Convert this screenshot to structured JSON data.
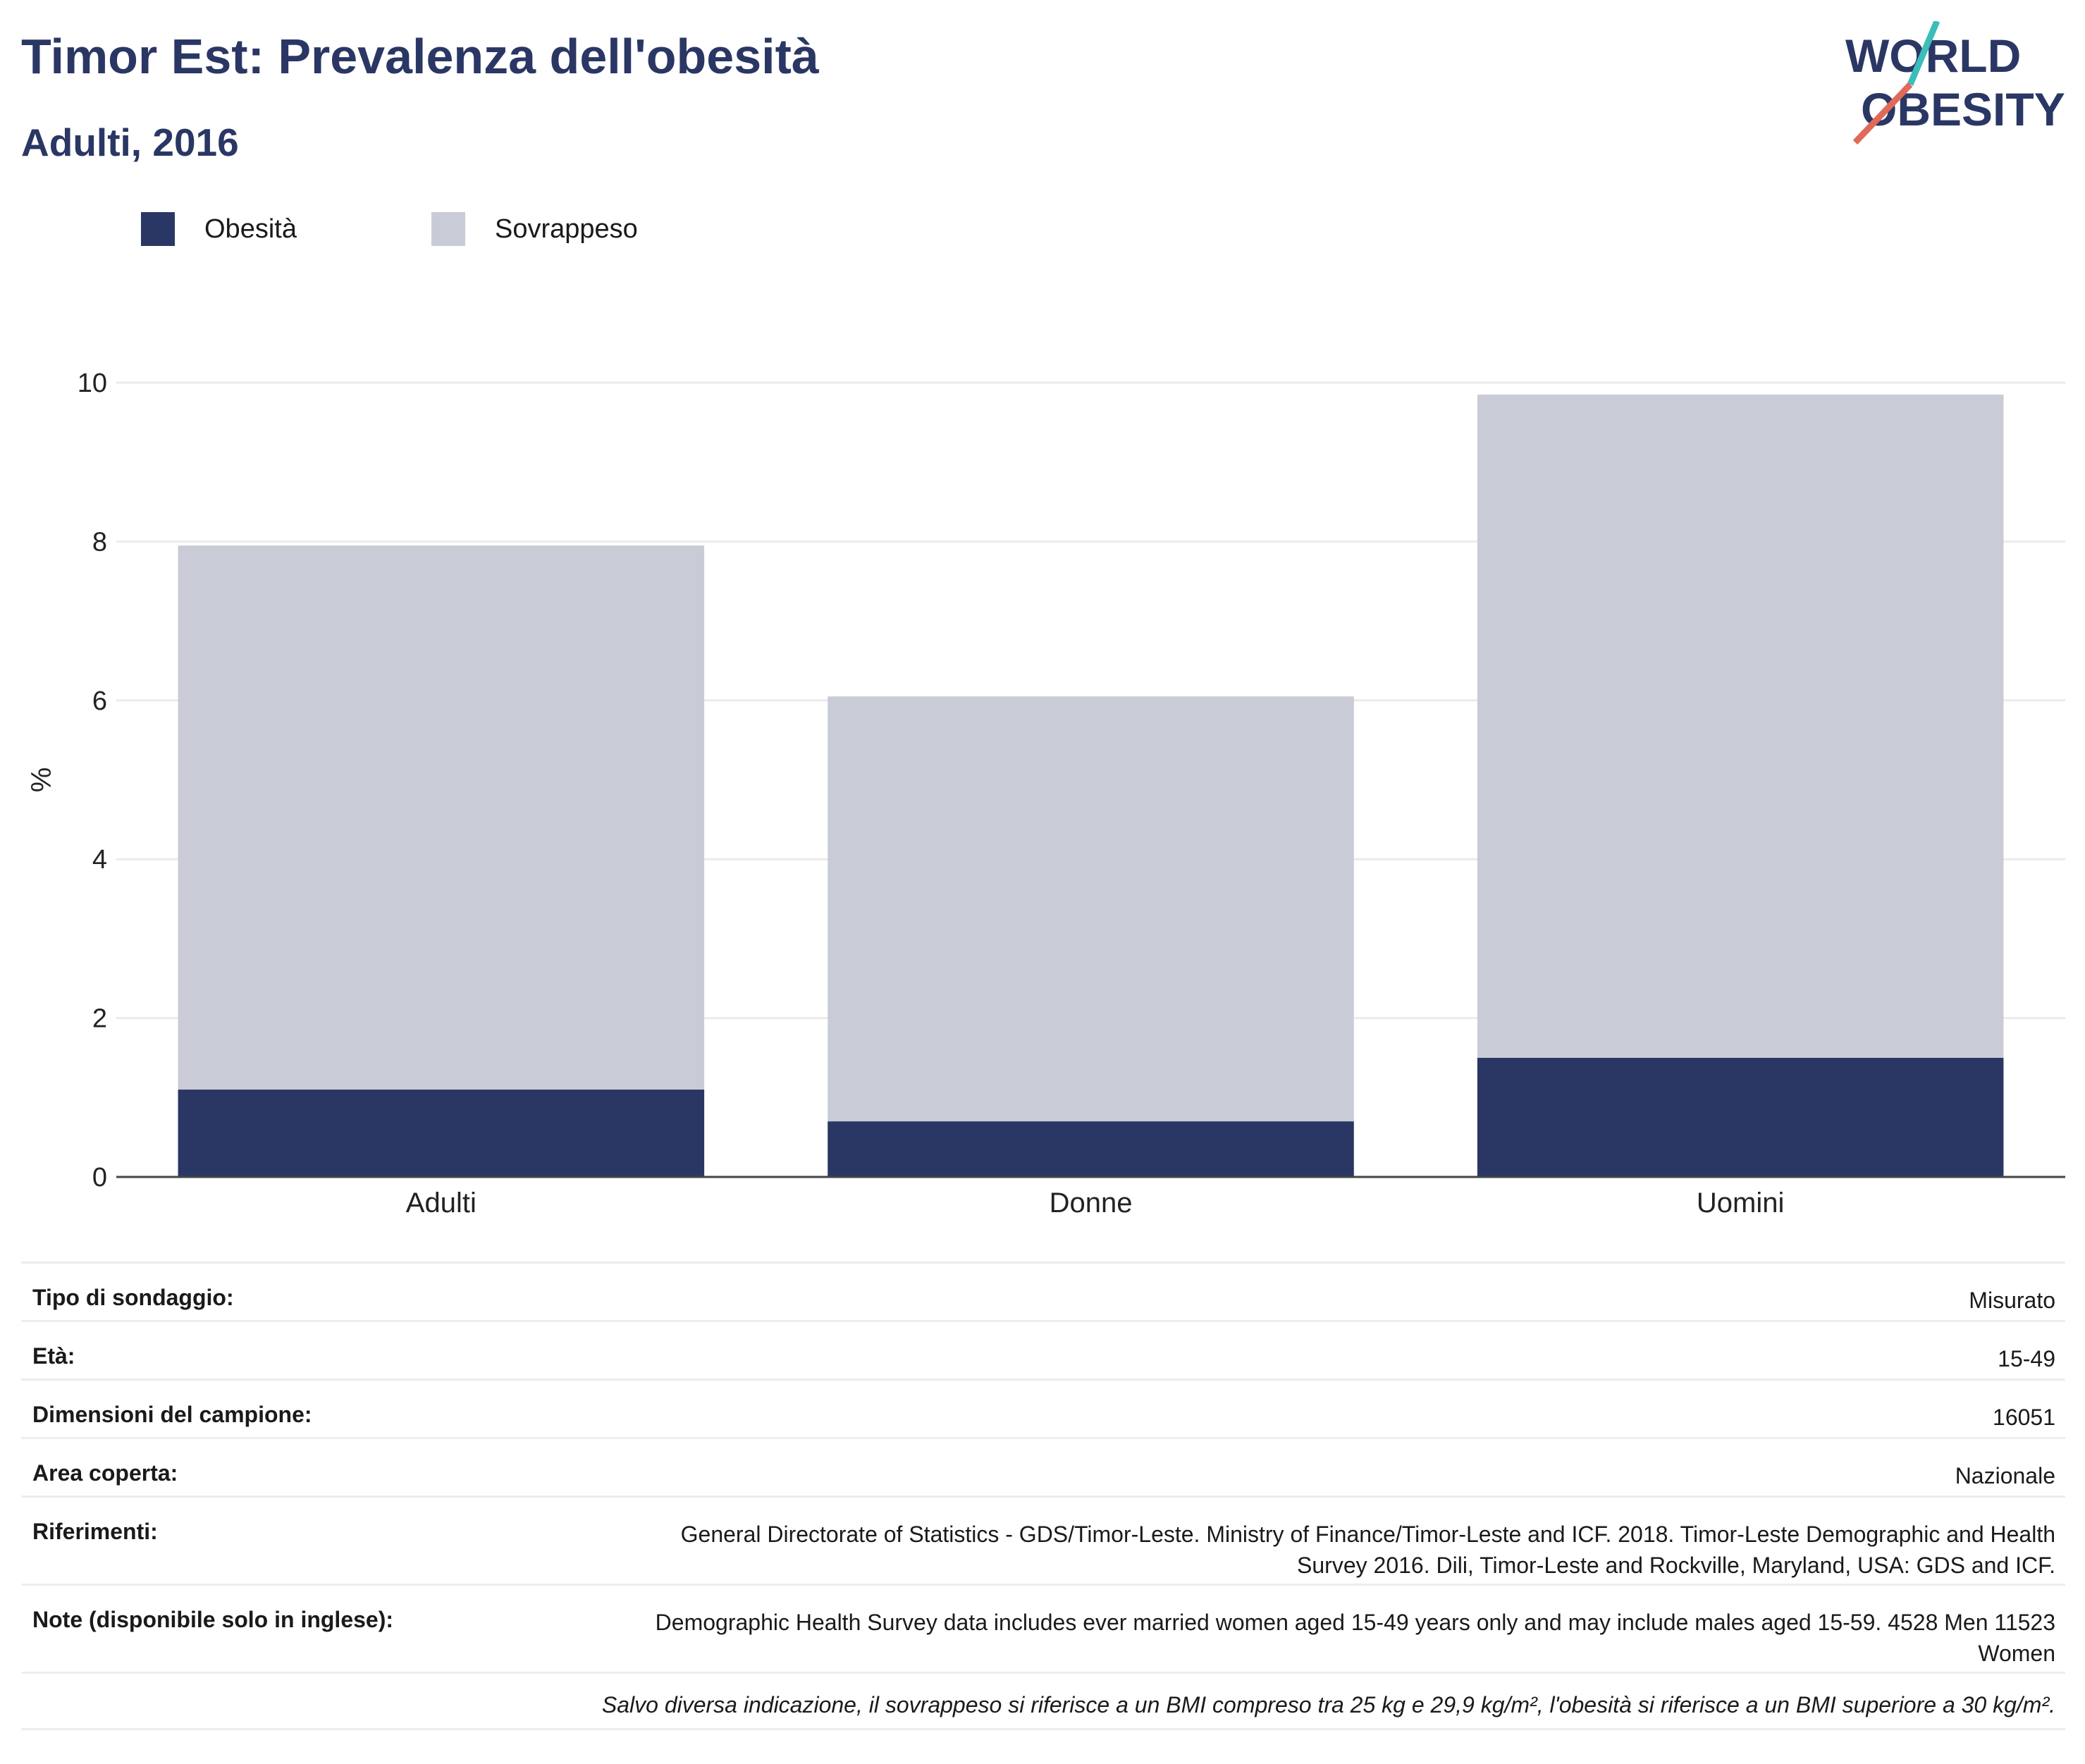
{
  "header": {
    "title": "Timor Est: Prevalenza dell'obesità",
    "subtitle": "Adulti, 2016"
  },
  "logo": {
    "line1": "WORLD",
    "line2": "OBESITY",
    "colors": {
      "text": "#2a3764",
      "slash_top": "#3bbdb9",
      "slash_bottom": "#e06a5a"
    }
  },
  "colors": {
    "obesity": "#2a3764",
    "overweight": "#c9ccd7",
    "grid": "#ebebeb",
    "axis": "#444444"
  },
  "chart_data": {
    "type": "bar",
    "stacked": true,
    "categories": [
      "Adulti",
      "Donne",
      "Uomini"
    ],
    "series": [
      {
        "name": "Obesità",
        "values": [
          1.1,
          0.7,
          1.5
        ]
      },
      {
        "name": "Sovrappeso",
        "values": [
          6.85,
          5.35,
          8.35
        ]
      }
    ],
    "ylabel": "%",
    "ylim": [
      0,
      10
    ],
    "yticks": [
      0,
      2,
      4,
      6,
      8,
      10
    ],
    "grid": true,
    "legend": "top-left"
  },
  "info": {
    "rows": [
      {
        "key": "Tipo di sondaggio:",
        "value": "Misurato"
      },
      {
        "key": "Età:",
        "value": "15-49"
      },
      {
        "key": "Dimensioni del campione:",
        "value": "16051"
      },
      {
        "key": "Area coperta:",
        "value": "Nazionale"
      },
      {
        "key": "Riferimenti:",
        "value": "General Directorate of Statistics - GDS/Timor-Leste. Ministry of Finance/Timor-Leste and ICF. 2018. Timor-Leste Demographic and Health Survey 2016. Dili, Timor-Leste and Rockville, Maryland, USA: GDS and ICF."
      },
      {
        "key": "Note (disponibile solo in inglese):",
        "value": "Demographic Health Survey data includes ever married women aged 15-49 years only and may include males aged 15-59. 4528 Men 11523 Women"
      }
    ],
    "footnote": "Salvo diversa indicazione, il sovrappeso si riferisce a un BMI compreso tra 25 kg e 29,9 kg/m², l'obesità si riferisce a un BMI superiore a 30 kg/m²."
  }
}
